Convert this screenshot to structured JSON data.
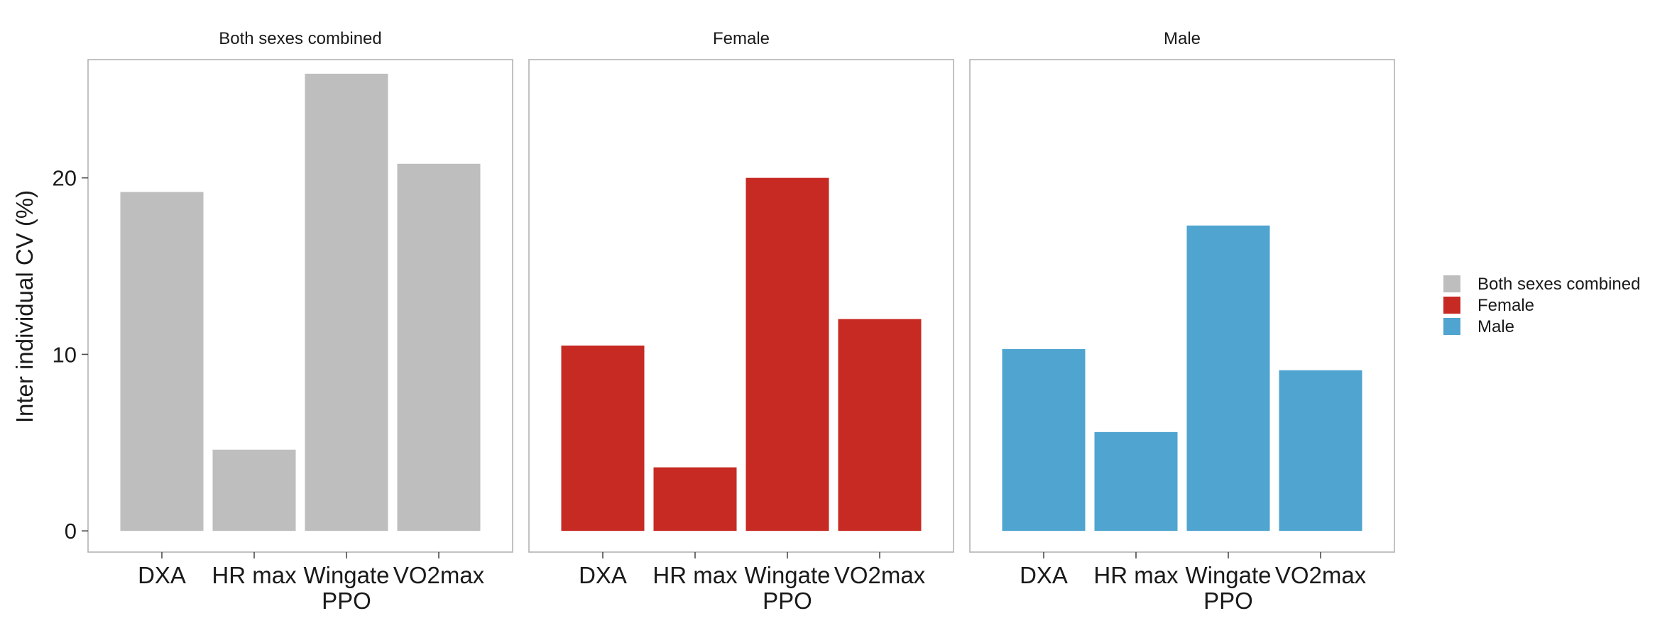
{
  "chart_data": {
    "type": "bar",
    "ylabel": "Inter individual CV (%)",
    "ylim": [
      -1.2,
      26.7
    ],
    "yticks": [
      0,
      10,
      20
    ],
    "categories": [
      "DXA",
      "HR max",
      "Wingate\nPPO",
      "VO2max"
    ],
    "grid": false,
    "legend_position": "right",
    "panels": [
      {
        "title": "Both sexes combined",
        "color": "#bebebe",
        "values": [
          19.2,
          4.6,
          25.9,
          20.8
        ]
      },
      {
        "title": "Female",
        "color": "#c62a23",
        "values": [
          10.5,
          3.6,
          20.0,
          12.0
        ]
      },
      {
        "title": "Male",
        "color": "#4fa4d0",
        "values": [
          10.3,
          5.6,
          17.3,
          9.1
        ]
      }
    ],
    "legend": [
      {
        "label": "Both sexes combined",
        "color": "#bebebe"
      },
      {
        "label": "Female",
        "color": "#c62a23"
      },
      {
        "label": "Male",
        "color": "#4fa4d0"
      }
    ]
  }
}
